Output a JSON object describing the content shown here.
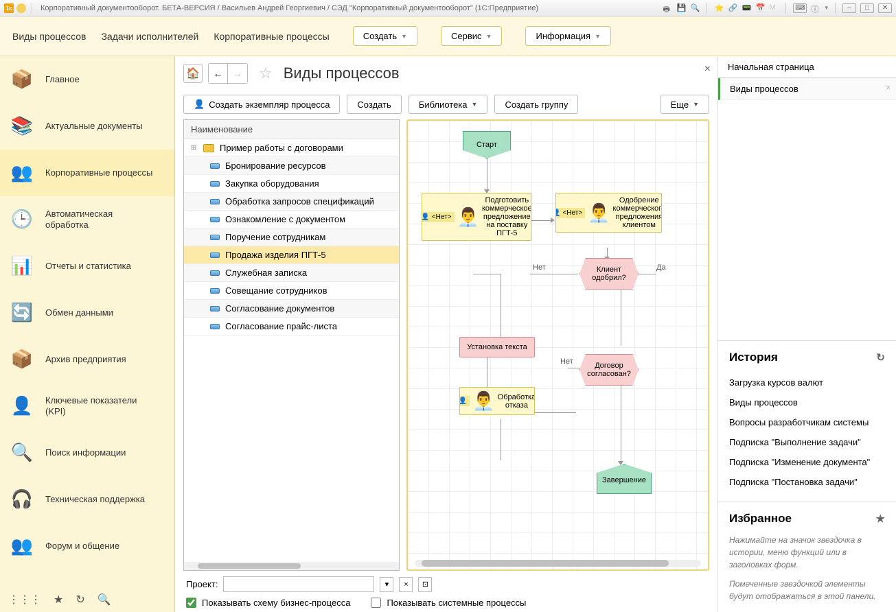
{
  "titlebar": {
    "title": "Корпоративный документооборот. БЕТА-ВЕРСИЯ / Васильев Андрей Георгиевич / СЭД \"Корпоративный документооборот\"  (1С:Предприятие)"
  },
  "ribbon": {
    "tabs": [
      "Виды процессов",
      "Задачи исполнителей",
      "Корпоративные процессы"
    ],
    "create": "Создать",
    "service": "Сервис",
    "info": "Информация"
  },
  "sidebar": {
    "items": [
      {
        "label": "Главное",
        "icon": "📦"
      },
      {
        "label": "Актуальные документы",
        "icon": "📚"
      },
      {
        "label": "Корпоративные процессы",
        "icon": "👥"
      },
      {
        "label": "Автоматическая\nобработка",
        "icon": "🕒"
      },
      {
        "label": "Отчеты и статистика",
        "icon": "📊"
      },
      {
        "label": "Обмен данными",
        "icon": "🔄"
      },
      {
        "label": "Архив предприятия",
        "icon": "📦"
      },
      {
        "label": "Ключевые показатели\n(KPI)",
        "icon": "👤"
      },
      {
        "label": "Поиск информации",
        "icon": "🔍"
      },
      {
        "label": "Техническая поддержка",
        "icon": "🎧"
      },
      {
        "label": "Форум и общение",
        "icon": "👥"
      }
    ],
    "active_index": 2
  },
  "page": {
    "title": "Виды процессов",
    "toolbar": {
      "create_instance": "Создать экземпляр процесса",
      "create": "Создать",
      "library": "Библиотека",
      "create_group": "Создать группу",
      "more": "Еще"
    },
    "list": {
      "header": "Наименование",
      "items": [
        {
          "label": "Пример работы с договорами",
          "folder": true
        },
        {
          "label": "Бронирование ресурсов"
        },
        {
          "label": "Закупка оборудования"
        },
        {
          "label": "Обработка запросов спецификаций"
        },
        {
          "label": "Ознакомление с документом"
        },
        {
          "label": "Поручение сотрудникам"
        },
        {
          "label": "Продажа изделия ПГТ-5",
          "selected": true
        },
        {
          "label": "Служебная записка"
        },
        {
          "label": "Совещание сотрудников"
        },
        {
          "label": "Согласование документов"
        },
        {
          "label": "Согласование прайс-листа"
        }
      ]
    },
    "diagram": {
      "start": "Старт",
      "task1_head": "<Нет>",
      "task1_text": "Подготовить коммерческое предложение на поставку ПГТ-5",
      "task2_head": "<Нет>",
      "task2_text": "Одобрение коммерческого предложения клиентом",
      "dec1": "Клиент одобрил?",
      "dec1_no": "Нет",
      "dec1_yes": "Да",
      "pink1": "Установка текста",
      "dec2": "Договор согласован?",
      "dec2_no": "Нет",
      "task3_head": "",
      "task3_text": "Обработка отказа",
      "end": "Завершение"
    },
    "project_label": "Проект:",
    "cb1": "Показывать схему бизнес-процесса",
    "cb2": "Показывать системные процессы"
  },
  "right": {
    "start_page": "Начальная страница",
    "active_tab": "Виды процессов",
    "history_title": "История",
    "history": [
      "Загрузка курсов валют",
      "Виды процессов",
      "Вопросы разработчикам системы",
      "Подписка \"Выполнение задачи\"",
      "Подписка \"Изменение документа\"",
      "Подписка \"Постановка задачи\""
    ],
    "fav_title": "Избранное",
    "fav_hint1": "Нажимайте на значок звездочка в истории, меню функций или в заголовках форм.",
    "fav_hint2": "Помеченные звездочкой элементы будут отображаться в этой панели."
  }
}
